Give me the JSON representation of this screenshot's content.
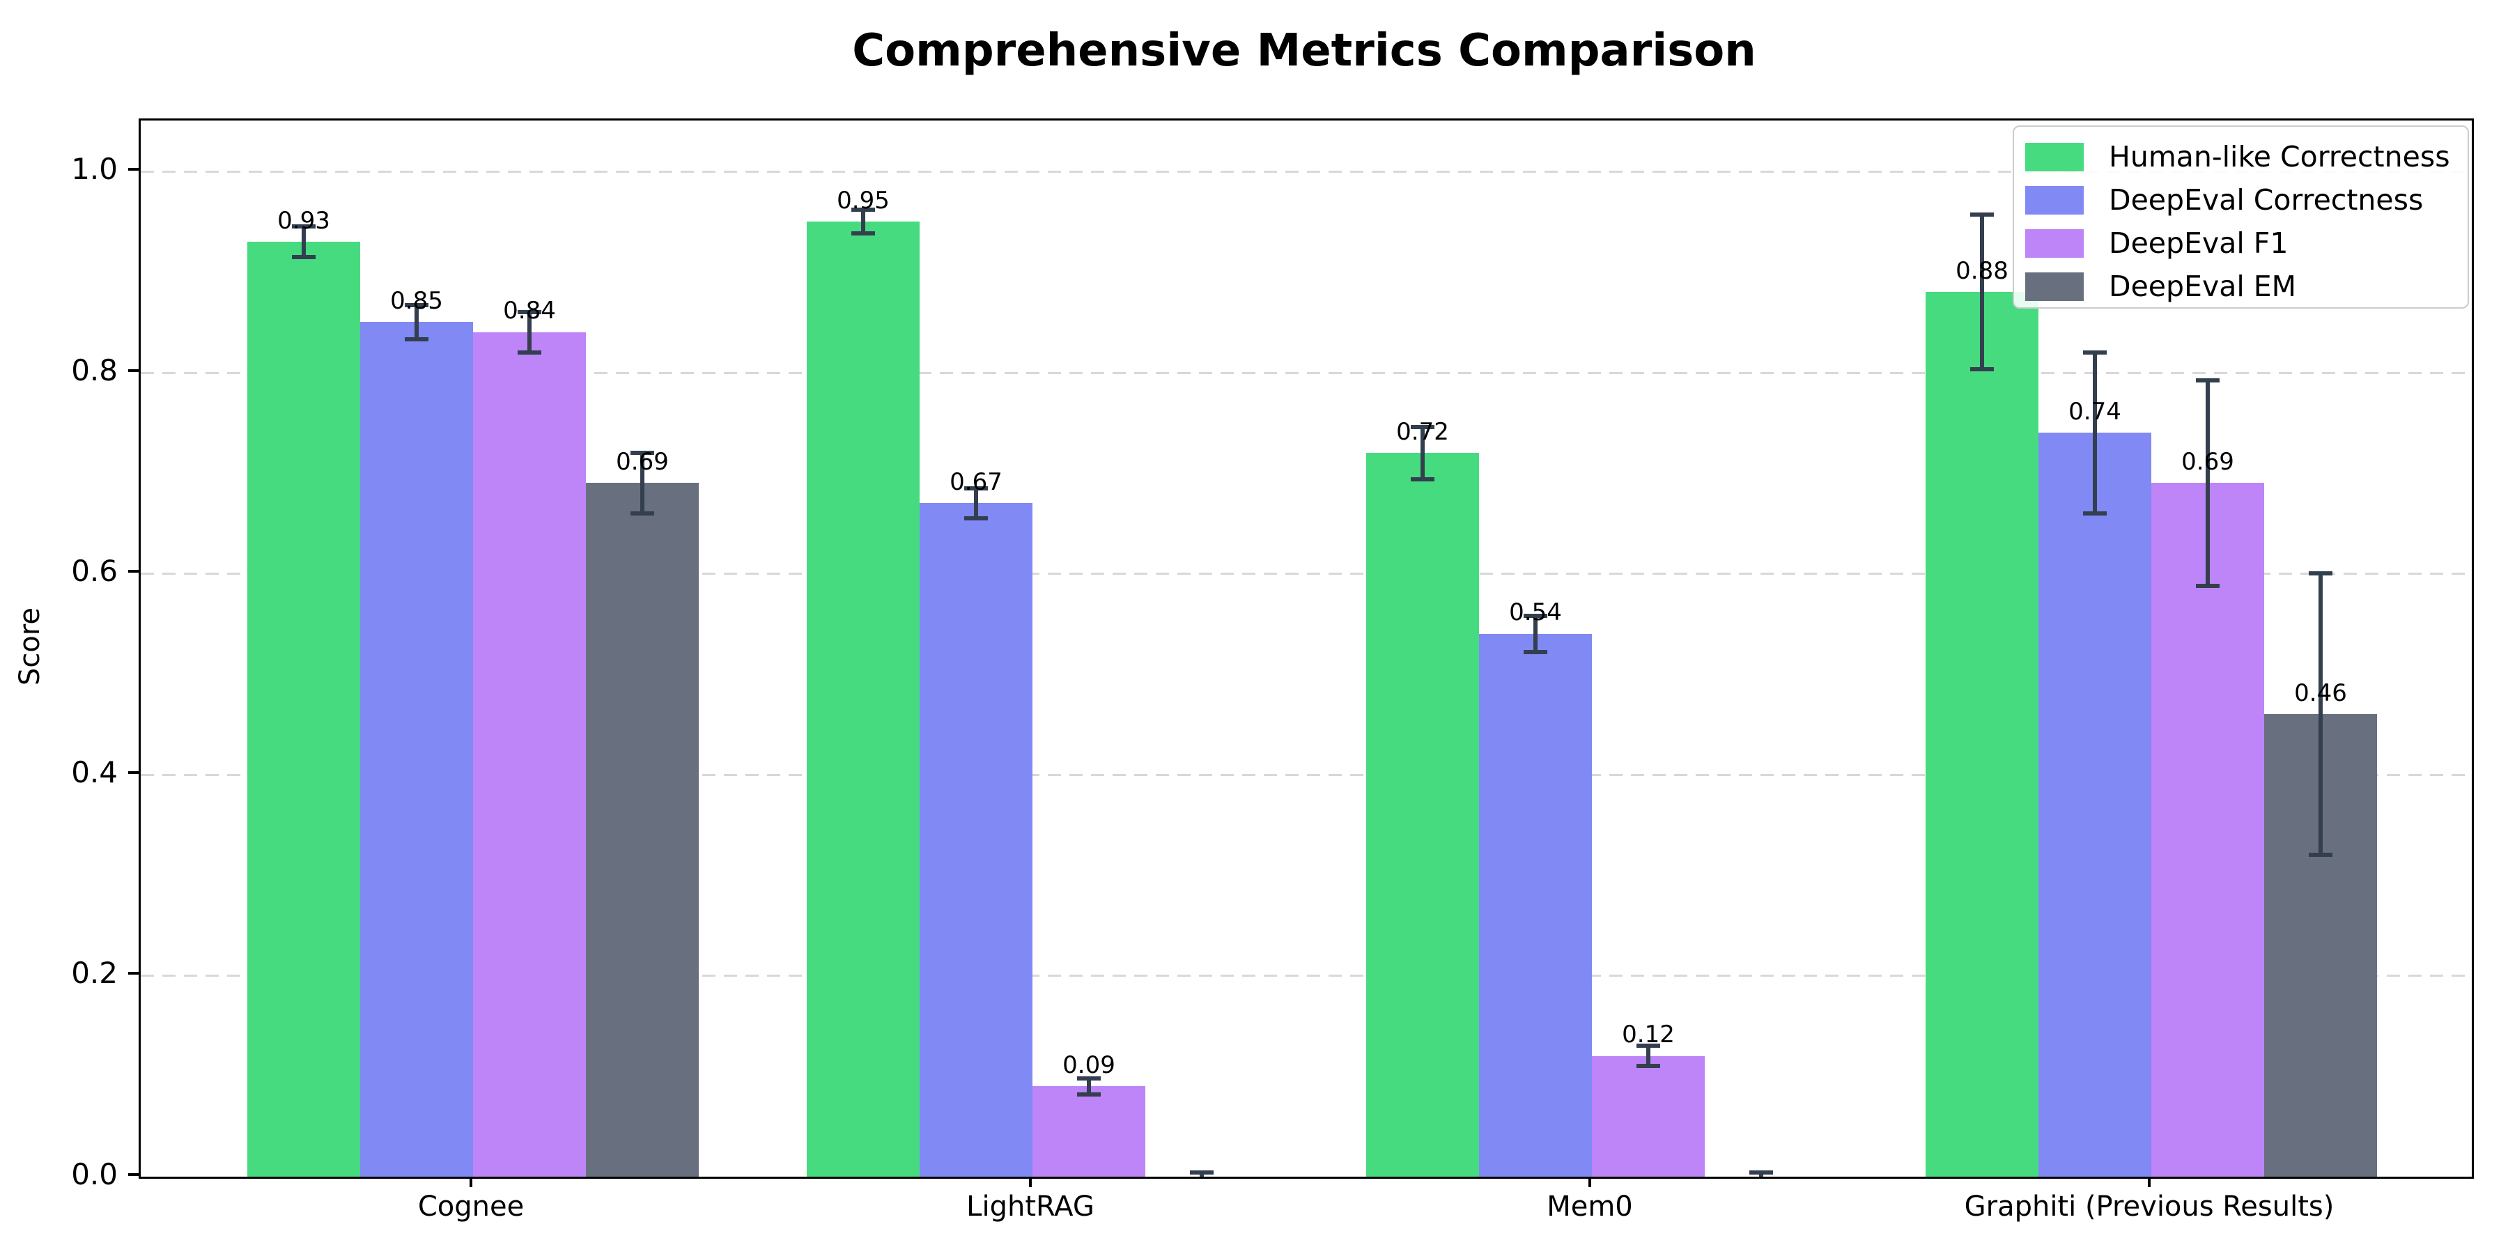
{
  "chart_data": {
    "type": "bar",
    "title": "Comprehensive Metrics Comparison",
    "ylabel": "Score",
    "xlabel": "",
    "categories": [
      "Cognee",
      "LightRAG",
      "Mem0",
      "Graphiti (Previous Results)"
    ],
    "series": [
      {
        "name": "Human-like Correctness",
        "color": "#47db80",
        "values": [
          0.93,
          0.95,
          0.72,
          0.88
        ],
        "errors": [
          0.015,
          0.012,
          0.026,
          0.077
        ]
      },
      {
        "name": "DeepEval Correctness",
        "color": "#8189f5",
        "values": [
          0.85,
          0.67,
          0.54,
          0.74
        ],
        "errors": [
          0.017,
          0.015,
          0.018,
          0.08
        ]
      },
      {
        "name": "DeepEval F1",
        "color": "#bd85f7",
        "values": [
          0.84,
          0.09,
          0.12,
          0.69
        ],
        "errors": [
          0.02,
          0.008,
          0.01,
          0.102
        ]
      },
      {
        "name": "DeepEval EM",
        "color": "#687080",
        "values": [
          0.69,
          0.0,
          0.0,
          0.46
        ],
        "errors": [
          0.03,
          0.004,
          0.004,
          0.14
        ]
      }
    ],
    "bar_value_labels": [
      "0.93",
      "0.85",
      "0.84",
      "0.69",
      "0.95",
      "0.67",
      "0.09",
      "0.72",
      "0.54",
      "0.12",
      "0.88",
      "0.74",
      "0.69",
      "0.46"
    ],
    "zero_bars_unlabeled": true,
    "ylim": [
      0.0,
      1.046
    ],
    "yticks": [
      "0.0",
      "0.2",
      "0.4",
      "0.6",
      "0.8",
      "1.0"
    ],
    "grid": "horizontal-dashed",
    "grid_color": "#d8d8d8",
    "errorbar_color": "#333f4e",
    "legend_position": "upper right"
  }
}
